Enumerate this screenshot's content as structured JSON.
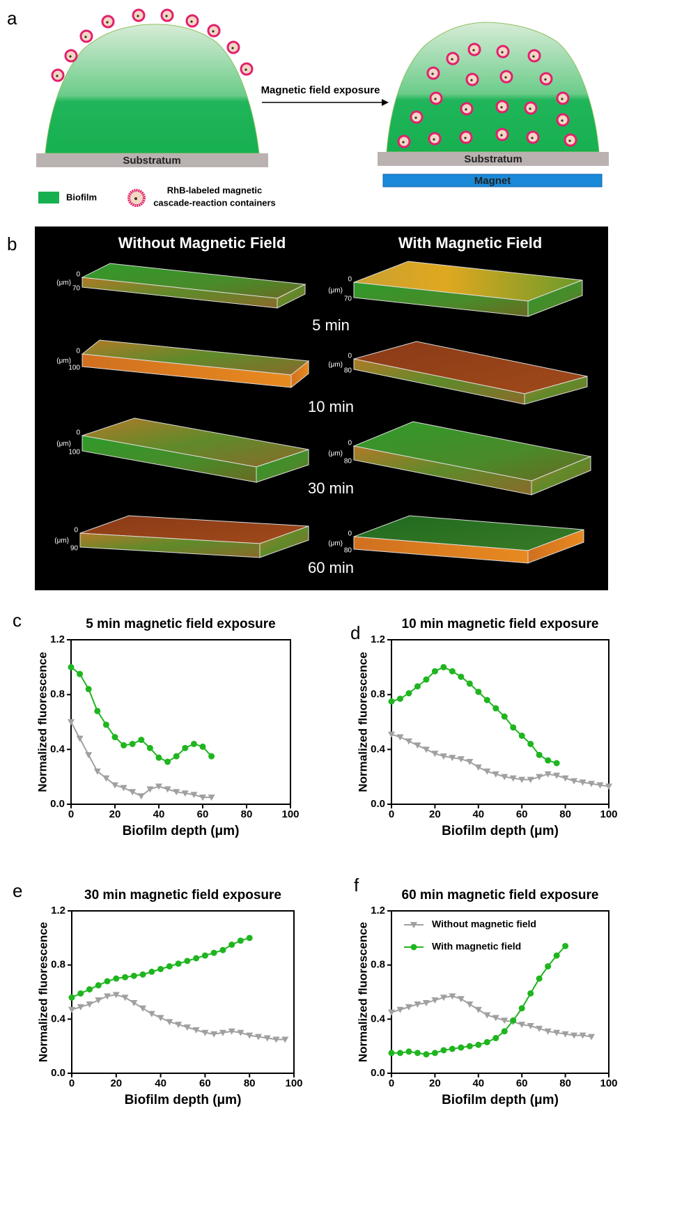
{
  "panel_a": {
    "label": "a",
    "substratum_left": "Substratum",
    "arrow_label": "Magnetic field exposure",
    "substratum_right": "Substratum",
    "magnet": "Magnet",
    "legend_biofilm": "Biofilm",
    "legend_containers": [
      "RhB-labeled magnetic",
      "cascade-reaction containers"
    ]
  },
  "panel_b": {
    "label": "b",
    "left_title": "Without Magnetic Field",
    "right_title": "With Magnetic Field",
    "unit": "(μm)",
    "rows": [
      {
        "time": "5 min",
        "left_depth": [
          0,
          70
        ],
        "right_depth": [
          0,
          70
        ]
      },
      {
        "time": "10 min",
        "left_depth": [
          0,
          100
        ],
        "right_depth": [
          0,
          80
        ]
      },
      {
        "time": "30 min",
        "left_depth": [
          0,
          100
        ],
        "right_depth": [
          0,
          80
        ]
      },
      {
        "time": "60 min",
        "left_depth": [
          0,
          90
        ],
        "right_depth": [
          0,
          80
        ]
      }
    ]
  },
  "chart_data": [
    {
      "type": "line",
      "label": "c",
      "title": "5 min magnetic field exposure",
      "x_label": "Biofilm depth (μm)",
      "y_label": "Normalized fluorescence",
      "xlim": [
        0,
        100
      ],
      "xticks": [
        0,
        20,
        40,
        60,
        80,
        100
      ],
      "ylim": [
        0,
        1.2
      ],
      "yticks": [
        {
          "value": 0,
          "label": "0.0"
        },
        0.4,
        0.8,
        1.2
      ],
      "series": [
        {
          "color": "#a0a0a0",
          "marker": "triangle-down",
          "x": [
            0,
            4,
            8,
            12,
            16,
            20,
            24,
            28,
            32,
            36,
            40,
            44,
            48,
            52,
            56,
            60,
            64
          ],
          "values": [
            0.6,
            0.48,
            0.36,
            0.24,
            0.19,
            0.14,
            0.12,
            0.09,
            0.06,
            0.11,
            0.13,
            0.11,
            0.09,
            0.08,
            0.07,
            0.05,
            0.05
          ]
        },
        {
          "color": "#1fb51f",
          "marker": "circle",
          "x": [
            0,
            4,
            8,
            12,
            16,
            20,
            24,
            28,
            32,
            36,
            40,
            44,
            48,
            52,
            56,
            60,
            64
          ],
          "values": [
            1.0,
            0.95,
            0.84,
            0.68,
            0.58,
            0.49,
            0.43,
            0.44,
            0.47,
            0.41,
            0.34,
            0.31,
            0.35,
            0.41,
            0.44,
            0.42,
            0.35
          ]
        }
      ]
    },
    {
      "type": "line",
      "label": "d",
      "title": "10 min magnetic field exposure",
      "x_label": "Biofilm depth (μm)",
      "y_label": "Normalized fluorescence",
      "xlim": [
        0,
        100
      ],
      "xticks": [
        0,
        20,
        40,
        60,
        80,
        100
      ],
      "ylim": [
        0,
        1.2
      ],
      "yticks": [
        {
          "value": 0,
          "label": "0.0"
        },
        0.4,
        0.8,
        1.2
      ],
      "series": [
        {
          "color": "#a0a0a0",
          "marker": "triangle-down",
          "x": [
            0,
            4,
            8,
            12,
            16,
            20,
            24,
            28,
            32,
            36,
            40,
            44,
            48,
            52,
            56,
            60,
            64,
            68,
            72,
            76,
            80,
            84,
            88,
            92,
            96,
            100
          ],
          "values": [
            0.51,
            0.49,
            0.46,
            0.43,
            0.4,
            0.37,
            0.35,
            0.34,
            0.33,
            0.31,
            0.27,
            0.24,
            0.22,
            0.2,
            0.19,
            0.18,
            0.18,
            0.2,
            0.22,
            0.21,
            0.19,
            0.17,
            0.16,
            0.15,
            0.14,
            0.13
          ]
        },
        {
          "color": "#1fb51f",
          "marker": "circle",
          "x": [
            0,
            4,
            8,
            12,
            16,
            20,
            24,
            28,
            32,
            36,
            40,
            44,
            48,
            52,
            56,
            60,
            64,
            68,
            72,
            76
          ],
          "values": [
            0.75,
            0.77,
            0.81,
            0.86,
            0.91,
            0.97,
            1.0,
            0.97,
            0.93,
            0.88,
            0.82,
            0.76,
            0.7,
            0.64,
            0.56,
            0.5,
            0.44,
            0.36,
            0.32,
            0.3
          ]
        }
      ]
    },
    {
      "type": "line",
      "label": "e",
      "title": "30 min magnetic field exposure",
      "x_label": "Biofilm depth (μm)",
      "y_label": "Normalized fluorescence",
      "xlim": [
        0,
        100
      ],
      "xticks": [
        0,
        20,
        40,
        60,
        80,
        100
      ],
      "ylim": [
        0,
        1.2
      ],
      "yticks": [
        {
          "value": 0,
          "label": "0.0"
        },
        0.4,
        0.8,
        1.2
      ],
      "series": [
        {
          "color": "#a0a0a0",
          "marker": "triangle-down",
          "x": [
            0,
            4,
            8,
            12,
            16,
            20,
            24,
            28,
            32,
            36,
            40,
            44,
            48,
            52,
            56,
            60,
            64,
            68,
            72,
            76,
            80,
            84,
            88,
            92,
            96
          ],
          "values": [
            0.47,
            0.49,
            0.51,
            0.54,
            0.57,
            0.58,
            0.56,
            0.52,
            0.48,
            0.44,
            0.41,
            0.38,
            0.36,
            0.34,
            0.32,
            0.3,
            0.29,
            0.3,
            0.31,
            0.3,
            0.28,
            0.27,
            0.26,
            0.25,
            0.25
          ]
        },
        {
          "color": "#1fb51f",
          "marker": "circle",
          "x": [
            0,
            4,
            8,
            12,
            16,
            20,
            24,
            28,
            32,
            36,
            40,
            44,
            48,
            52,
            56,
            60,
            64,
            68,
            72,
            76,
            80
          ],
          "values": [
            0.56,
            0.59,
            0.62,
            0.65,
            0.68,
            0.7,
            0.71,
            0.72,
            0.73,
            0.75,
            0.77,
            0.79,
            0.81,
            0.83,
            0.85,
            0.87,
            0.89,
            0.91,
            0.95,
            0.98,
            1.0
          ]
        }
      ]
    },
    {
      "type": "line",
      "label": "f",
      "title": "60 min magnetic field exposure",
      "x_label": "Biofilm depth (μm)",
      "y_label": "Normalized fluorescence",
      "xlim": [
        0,
        100
      ],
      "xticks": [
        0,
        20,
        40,
        60,
        80,
        100
      ],
      "ylim": [
        0,
        1.2
      ],
      "yticks": [
        {
          "value": 0,
          "label": "0.0"
        },
        0.4,
        0.8,
        1.2
      ],
      "legend": "upper left",
      "series": [
        {
          "name": "Without magnetic field",
          "color": "#a0a0a0",
          "marker": "triangle-down",
          "x": [
            0,
            4,
            8,
            12,
            16,
            20,
            24,
            28,
            32,
            36,
            40,
            44,
            48,
            52,
            56,
            60,
            64,
            68,
            72,
            76,
            80,
            84,
            88,
            92
          ],
          "values": [
            0.45,
            0.47,
            0.49,
            0.51,
            0.52,
            0.54,
            0.56,
            0.57,
            0.55,
            0.51,
            0.47,
            0.43,
            0.41,
            0.39,
            0.38,
            0.36,
            0.35,
            0.33,
            0.31,
            0.3,
            0.29,
            0.28,
            0.28,
            0.27
          ]
        },
        {
          "name": "With magnetic field",
          "color": "#1fb51f",
          "marker": "circle",
          "x": [
            0,
            4,
            8,
            12,
            16,
            20,
            24,
            28,
            32,
            36,
            40,
            44,
            48,
            52,
            56,
            60,
            64,
            68,
            72,
            76,
            80
          ],
          "values": [
            0.15,
            0.15,
            0.16,
            0.15,
            0.14,
            0.15,
            0.17,
            0.18,
            0.19,
            0.2,
            0.21,
            0.23,
            0.26,
            0.31,
            0.39,
            0.48,
            0.59,
            0.7,
            0.79,
            0.87,
            0.94
          ]
        }
      ]
    }
  ]
}
